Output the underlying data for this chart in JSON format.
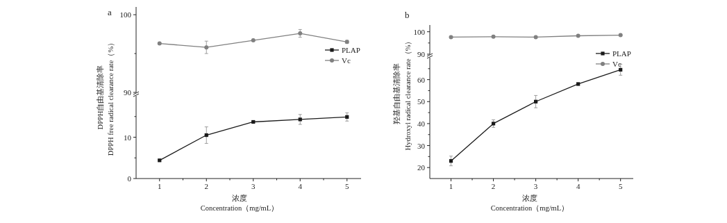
{
  "chart_data": [
    {
      "type": "line",
      "title": "a",
      "x": [
        1,
        2,
        3,
        4,
        5
      ],
      "tick_labels": "y",
      "ylim": [
        90,
        101
      ],
      "yticks": [
        90,
        {
          "value": 95,
          "label": null
        },
        100
      ],
      "legend": "right",
      "series": [
        {
          "name": "Vc",
          "color": "#808080",
          "marker": "circle",
          "values": [
            96.3,
            95.8,
            96.7,
            97.6,
            96.5
          ],
          "errors": [
            0.1,
            0.8,
            0.1,
            0.5,
            0.2
          ]
        }
      ]
    },
    {
      "type": "line",
      "xlabel": "浓度\nConcentration（mg/mL）",
      "ylabel": "DPPH自由基清除率\nDPPH free radical clearance rate（%）",
      "x": [
        1,
        2,
        3,
        4,
        5
      ],
      "xlim": [
        0.5,
        5.3
      ],
      "xticks": [
        1,
        {
          "value": 1.5,
          "label": null
        },
        2,
        {
          "value": 2.5,
          "label": null
        },
        3,
        {
          "value": 3.5,
          "label": null
        },
        4,
        {
          "value": 4.5,
          "label": null
        },
        5
      ],
      "ylim": [
        0,
        20
      ],
      "yticks": [
        0,
        {
          "value": 5,
          "label": null
        },
        10,
        {
          "value": 15,
          "label": null
        }
      ],
      "legend": "right",
      "series": [
        {
          "name": "PLAP",
          "color": "#1a1a1a",
          "marker": "square",
          "values": [
            4.4,
            10.5,
            13.7,
            14.3,
            14.9
          ],
          "errors": [
            0.2,
            2,
            0.2,
            1.2,
            1
          ]
        }
      ]
    },
    {
      "type": "line",
      "title": "b",
      "x": [
        1,
        2,
        3,
        4,
        5
      ],
      "tick_labels": "y",
      "ylim": [
        90,
        103
      ],
      "yticks": [
        90,
        {
          "value": 95,
          "label": null
        },
        100
      ],
      "legend": "bottom right",
      "series": [
        {
          "name": "Vc",
          "color": "#808080",
          "marker": "circle",
          "values": [
            97.6,
            97.8,
            97.6,
            98.2,
            98.5
          ],
          "errors": [
            0.1,
            0.1,
            0.1,
            0.1,
            0.1
          ]
        }
      ]
    },
    {
      "type": "line",
      "xlabel": "浓度\nConcentration（mg/mL）",
      "ylabel": "羟基自由基清除率\nHydroxyl radical clearance rate（%）",
      "x": [
        1,
        2,
        3,
        4,
        5
      ],
      "xlim": [
        0.5,
        5.3
      ],
      "xticks": [
        1,
        {
          "value": 1.5,
          "label": null
        },
        2,
        {
          "value": 2.5,
          "label": null
        },
        3,
        {
          "value": 3.5,
          "label": null
        },
        4,
        {
          "value": 4.5,
          "label": null
        },
        5
      ],
      "ylim": [
        15,
        70
      ],
      "yticks": [
        20,
        {
          "value": 25,
          "label": null
        },
        30,
        {
          "value": 35,
          "label": null
        },
        40,
        {
          "value": 45,
          "label": null
        },
        50,
        {
          "value": 55,
          "label": null
        },
        60,
        {
          "value": 65,
          "label": null
        }
      ],
      "legend": "top right",
      "series": [
        {
          "name": "PLAP",
          "color": "#1a1a1a",
          "marker": "square",
          "values": [
            23,
            40,
            50,
            58,
            64.5
          ],
          "errors": [
            2.2,
            1.7,
            2.8,
            0.5,
            2.5
          ]
        }
      ]
    }
  ]
}
